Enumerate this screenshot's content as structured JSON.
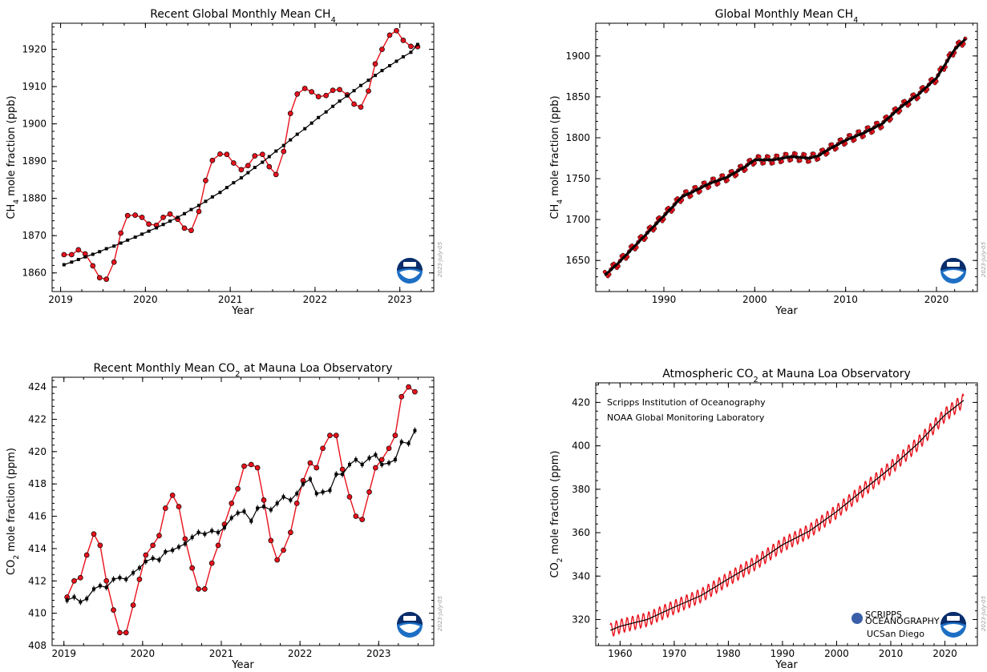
{
  "stamp": "2023-July-05",
  "colors": {
    "monthly": "#e8121c",
    "trend": "#000000",
    "noaa_blue": "#1d6fc4",
    "noaa_navy": "#0a2d6b"
  },
  "chart_data": [
    {
      "id": "recent-ch4",
      "type": "line",
      "title": "Recent Global Monthly Mean CH",
      "title_sub": "4",
      "xlabel": "Year",
      "ylabel": "CH",
      "ylabel_sub": "4",
      "ylabel_rest": " mole fraction (ppb)",
      "xlim": [
        2018.9,
        2023.4
      ],
      "ylim": [
        1855,
        1927
      ],
      "xticks": [
        2019,
        2020,
        2021,
        2022,
        2023
      ],
      "yticks": [
        1860,
        1870,
        1880,
        1890,
        1900,
        1910,
        1920
      ],
      "series": [
        {
          "role": "monthly",
          "color": "#e8121c",
          "x": [
            2019.04,
            2019.13,
            2019.21,
            2019.29,
            2019.38,
            2019.46,
            2019.54,
            2019.63,
            2019.71,
            2019.79,
            2019.88,
            2019.96,
            2020.04,
            2020.13,
            2020.21,
            2020.29,
            2020.38,
            2020.46,
            2020.54,
            2020.63,
            2020.71,
            2020.79,
            2020.88,
            2020.96,
            2021.04,
            2021.13,
            2021.21,
            2021.29,
            2021.38,
            2021.46,
            2021.54,
            2021.63,
            2021.71,
            2021.79,
            2021.88,
            2021.96,
            2022.04,
            2022.13,
            2022.21,
            2022.29,
            2022.38,
            2022.46,
            2022.54,
            2022.63,
            2022.71,
            2022.79,
            2022.88,
            2022.96,
            2023.04,
            2023.13,
            2023.21
          ],
          "y": [
            1864.9,
            1864.9,
            1866.2,
            1865.1,
            1861.9,
            1858.7,
            1858.3,
            1862.9,
            1870.7,
            1875.4,
            1875.5,
            1874.9,
            1873.1,
            1872.8,
            1874.9,
            1875.8,
            1874.4,
            1872.0,
            1871.4,
            1876.5,
            1884.8,
            1890.2,
            1891.9,
            1891.8,
            1889.5,
            1887.7,
            1888.8,
            1891.4,
            1891.8,
            1888.5,
            1886.4,
            1892.6,
            1902.8,
            1908.0,
            1909.5,
            1908.6,
            1907.3,
            1907.6,
            1909.0,
            1909.2,
            1907.8,
            1905.3,
            1904.5,
            1908.8,
            1916.1,
            1920.0,
            1923.8,
            1925.0,
            1922.4,
            1920.8,
            1920.7
          ]
        },
        {
          "role": "trend",
          "color": "#000000",
          "x": [
            2019.04,
            2019.13,
            2019.21,
            2019.29,
            2019.38,
            2019.46,
            2019.54,
            2019.63,
            2019.71,
            2019.79,
            2019.88,
            2019.96,
            2020.04,
            2020.13,
            2020.21,
            2020.29,
            2020.38,
            2020.46,
            2020.54,
            2020.63,
            2020.71,
            2020.79,
            2020.88,
            2020.96,
            2021.04,
            2021.13,
            2021.21,
            2021.29,
            2021.38,
            2021.46,
            2021.54,
            2021.63,
            2021.71,
            2021.79,
            2021.88,
            2021.96,
            2022.04,
            2022.13,
            2022.21,
            2022.29,
            2022.38,
            2022.46,
            2022.54,
            2022.63,
            2022.71,
            2022.79,
            2022.88,
            2022.96,
            2023.04,
            2023.13,
            2023.21
          ],
          "y": [
            1862.2,
            1862.9,
            1863.6,
            1864.3,
            1865.0,
            1865.7,
            1866.5,
            1867.2,
            1868.0,
            1868.8,
            1869.6,
            1870.4,
            1871.2,
            1872.1,
            1873.0,
            1873.9,
            1874.9,
            1875.9,
            1877.0,
            1878.1,
            1879.2,
            1880.4,
            1881.6,
            1882.9,
            1884.2,
            1885.5,
            1886.9,
            1888.3,
            1889.7,
            1891.2,
            1892.7,
            1894.2,
            1895.7,
            1897.2,
            1898.7,
            1900.2,
            1901.7,
            1903.2,
            1904.7,
            1906.1,
            1907.5,
            1908.9,
            1910.3,
            1911.7,
            1913.0,
            1914.3,
            1915.6,
            1916.8,
            1918.0,
            1919.2,
            1921.3
          ]
        }
      ]
    },
    {
      "id": "global-ch4",
      "type": "line",
      "title": "Global Monthly Mean CH",
      "title_sub": "4",
      "xlabel": "Year",
      "ylabel": "CH",
      "ylabel_sub": "4",
      "ylabel_rest": " mole fraction (ppb)",
      "xlim": [
        1982.5,
        2024.5
      ],
      "ylim": [
        1612,
        1940
      ],
      "xticks": [
        1990,
        2000,
        2010,
        2020
      ],
      "yticks": [
        1650,
        1700,
        1750,
        1800,
        1850,
        1900
      ],
      "seasonal_amplitude": 5,
      "series": [
        {
          "role": "trend",
          "color": "#000000",
          "x": [
            1983.5,
            1985,
            1987,
            1989,
            1991,
            1992,
            1993,
            1995,
            1997,
            1999,
            2000,
            2002,
            2004,
            2006,
            2007,
            2008,
            2010,
            2012,
            2014,
            2016,
            2018,
            2020,
            2022,
            2023.2
          ],
          "y": [
            1632,
            1647,
            1670,
            1693,
            1716,
            1728,
            1733,
            1744,
            1752,
            1765,
            1773,
            1773,
            1777,
            1775,
            1778,
            1785,
            1797,
            1806,
            1817,
            1837,
            1853,
            1873,
            1908,
            1921
          ]
        }
      ]
    },
    {
      "id": "recent-co2",
      "type": "line",
      "title": "Recent Monthly Mean CO",
      "title_sub": "2",
      "title_rest": " at Mauna Loa Observatory",
      "xlabel": "Year",
      "ylabel": "CO",
      "ylabel_sub": "2",
      "ylabel_rest": " mole fraction (ppm)",
      "xlim": [
        2018.85,
        2023.7
      ],
      "ylim": [
        408,
        424.6
      ],
      "xticks": [
        2019,
        2020,
        2021,
        2022,
        2023
      ],
      "yticks": [
        408,
        410,
        412,
        414,
        416,
        418,
        420,
        422,
        424
      ],
      "series": [
        {
          "role": "monthly",
          "color": "#e8121c",
          "x": [
            2019.04,
            2019.13,
            2019.21,
            2019.29,
            2019.38,
            2019.46,
            2019.54,
            2019.63,
            2019.71,
            2019.79,
            2019.88,
            2019.96,
            2020.04,
            2020.13,
            2020.21,
            2020.29,
            2020.38,
            2020.46,
            2020.54,
            2020.63,
            2020.71,
            2020.79,
            2020.88,
            2020.96,
            2021.04,
            2021.13,
            2021.21,
            2021.29,
            2021.38,
            2021.46,
            2021.54,
            2021.63,
            2021.71,
            2021.79,
            2021.88,
            2021.96,
            2022.04,
            2022.13,
            2022.21,
            2022.29,
            2022.38,
            2022.46,
            2022.54,
            2022.63,
            2022.71,
            2022.79,
            2022.88,
            2022.96,
            2023.04,
            2023.13,
            2023.21,
            2023.29,
            2023.38,
            2023.46
          ],
          "y": [
            411.0,
            412.0,
            412.2,
            413.6,
            414.9,
            414.2,
            412.0,
            410.2,
            408.8,
            408.8,
            410.5,
            412.1,
            413.6,
            414.2,
            414.8,
            416.5,
            417.3,
            416.6,
            414.6,
            412.8,
            411.5,
            411.5,
            413.1,
            414.2,
            415.5,
            416.8,
            417.7,
            419.1,
            419.2,
            419.0,
            417.0,
            414.5,
            413.3,
            413.9,
            415.0,
            416.8,
            418.2,
            419.3,
            419.0,
            420.2,
            421.0,
            421.0,
            418.9,
            417.2,
            416.0,
            415.8,
            417.5,
            419.0,
            419.5,
            420.2,
            421.0,
            423.4,
            424.0,
            423.7
          ]
        },
        {
          "role": "trend",
          "color": "#000000",
          "x": [
            2019.04,
            2019.13,
            2019.21,
            2019.29,
            2019.38,
            2019.46,
            2019.54,
            2019.63,
            2019.71,
            2019.79,
            2019.88,
            2019.96,
            2020.04,
            2020.13,
            2020.21,
            2020.29,
            2020.38,
            2020.46,
            2020.54,
            2020.63,
            2020.71,
            2020.79,
            2020.88,
            2020.96,
            2021.04,
            2021.13,
            2021.21,
            2021.29,
            2021.38,
            2021.46,
            2021.54,
            2021.63,
            2021.71,
            2021.79,
            2021.88,
            2021.96,
            2022.04,
            2022.13,
            2022.21,
            2022.29,
            2022.38,
            2022.46,
            2022.54,
            2022.63,
            2022.71,
            2022.79,
            2022.88,
            2022.96,
            2023.04,
            2023.13,
            2023.21,
            2023.29,
            2023.38,
            2023.46
          ],
          "y": [
            410.8,
            411.0,
            410.7,
            410.9,
            411.5,
            411.7,
            411.6,
            412.1,
            412.2,
            412.1,
            412.5,
            412.8,
            413.2,
            413.4,
            413.3,
            413.8,
            413.9,
            414.1,
            414.3,
            414.7,
            415.0,
            414.9,
            415.1,
            415.0,
            415.3,
            415.9,
            416.2,
            416.3,
            415.7,
            416.5,
            416.6,
            416.4,
            416.8,
            417.2,
            417.0,
            417.4,
            418.0,
            418.3,
            417.4,
            417.5,
            417.6,
            418.6,
            418.6,
            419.2,
            419.5,
            419.2,
            419.6,
            419.8,
            419.2,
            419.3,
            419.5,
            420.6,
            420.5,
            421.3
          ]
        }
      ]
    },
    {
      "id": "mlo-co2",
      "type": "line",
      "title": "Atmospheric CO",
      "title_sub": "2",
      "title_rest": " at Mauna Loa Observatory",
      "xlabel": "Year",
      "ylabel": "CO",
      "ylabel_sub": "2",
      "ylabel_rest": " mole fraction (ppm)",
      "xlim": [
        1955.5,
        2026
      ],
      "ylim": [
        308,
        429
      ],
      "xticks": [
        1960,
        1970,
        1980,
        1990,
        2000,
        2010,
        2020
      ],
      "yticks": [
        320,
        340,
        360,
        380,
        400,
        420
      ],
      "annotations": [
        "Scripps Institution of Oceanography",
        "NOAA Global Monitoring Laboratory"
      ],
      "logo_lines": [
        "SCRIPPS",
        "OCEANOGRAPHY",
        "UCSan Diego"
      ],
      "seasonal_amplitude": 3.2,
      "series": [
        {
          "role": "trend",
          "color": "#000000",
          "x": [
            1958.2,
            1960,
            1965,
            1970,
            1975,
            1980,
            1985,
            1990,
            1995,
            2000,
            2005,
            2010,
            2015,
            2020,
            2023.5
          ],
          "y": [
            315,
            316.9,
            320.0,
            325.7,
            331.1,
            338.7,
            346.0,
            354.4,
            360.8,
            369.7,
            379.8,
            389.9,
            401.0,
            414.2,
            421.0
          ]
        }
      ]
    }
  ]
}
